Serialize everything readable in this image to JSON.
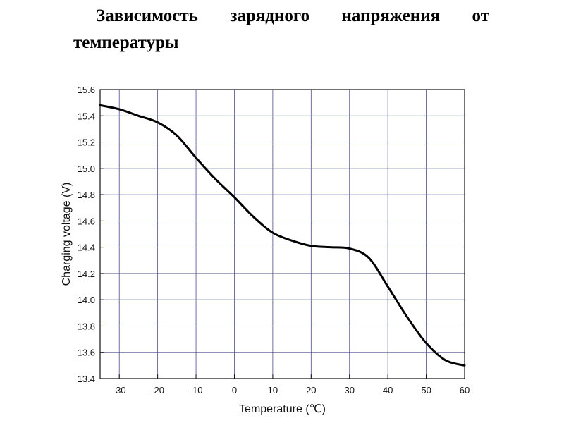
{
  "document": {
    "title": "Зависимость зарядного напряжения от температуры"
  },
  "chart_data": {
    "type": "line",
    "title": "",
    "xlabel": "Temperature (℃)",
    "ylabel": "Charging voltage (V)",
    "xlim": [
      -35,
      60
    ],
    "ylim": [
      13.4,
      15.6
    ],
    "xticks": [
      -30,
      -20,
      -10,
      0,
      10,
      20,
      30,
      40,
      50,
      60
    ],
    "yticks": [
      13.4,
      13.6,
      13.8,
      14.0,
      14.2,
      14.4,
      14.6,
      14.8,
      15.0,
      15.2,
      15.4,
      15.6
    ],
    "xtick_labels": [
      "-30",
      "-20",
      "-10",
      "0",
      "10",
      "20",
      "30",
      "40",
      "50",
      "60"
    ],
    "ytick_labels": [
      "13.4",
      "13.6",
      "13.8",
      "14.0",
      "14.2",
      "14.4",
      "14.6",
      "14.8",
      "15.0",
      "15.2",
      "15.4",
      "15.6"
    ],
    "grid": true,
    "series": [
      {
        "color": "#000000",
        "x": [
          -35,
          -30,
          -25,
          -20,
          -15,
          -10,
          -5,
          0,
          5,
          10,
          15,
          20,
          25,
          30,
          35,
          40,
          45,
          50,
          55,
          60
        ],
        "y": [
          15.48,
          15.45,
          15.4,
          15.35,
          15.25,
          15.08,
          14.92,
          14.78,
          14.63,
          14.51,
          14.45,
          14.41,
          14.4,
          14.39,
          14.32,
          14.1,
          13.87,
          13.67,
          13.54,
          13.5
        ]
      }
    ]
  }
}
